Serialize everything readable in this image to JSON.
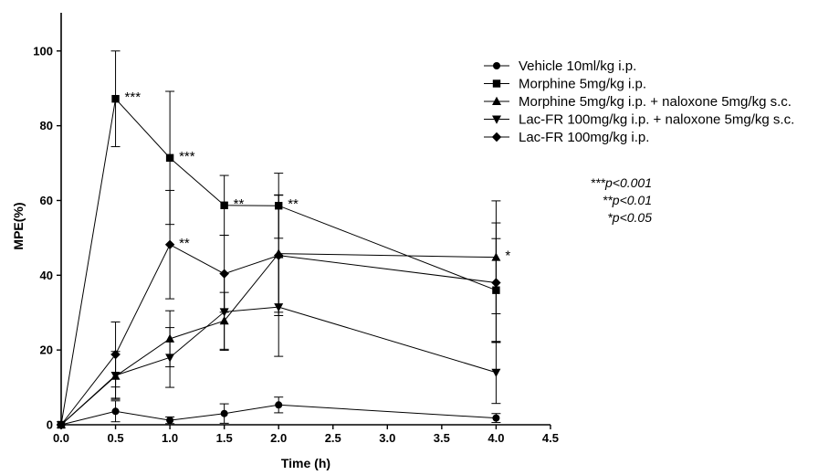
{
  "chart_data": {
    "type": "line",
    "xlabel": "Time (h)",
    "ylabel": "MPE(%)",
    "xlim": [
      0,
      4.5
    ],
    "ylim": [
      0,
      110
    ],
    "x_ticks": [
      "0.0",
      "0.5",
      "1.0",
      "1.5",
      "2.0",
      "2.5",
      "3.0",
      "3.5",
      "4.0",
      "4.5"
    ],
    "y_ticks": [
      "0",
      "20",
      "40",
      "60",
      "80",
      "100"
    ],
    "grid": false,
    "legend_position": "top-right",
    "x": [
      0,
      0.5,
      1.0,
      1.5,
      2.0,
      4.0
    ],
    "series": [
      {
        "name": "Vehicle 10ml/kg i.p.",
        "marker": "circle",
        "values": [
          0,
          3.6,
          1.2,
          3.0,
          5.3,
          1.8
        ],
        "error": [
          0,
          2.8,
          0.9,
          2.6,
          2.1,
          1.2
        ]
      },
      {
        "name": "Morphine 5mg/kg i.p.",
        "marker": "square",
        "values": [
          0,
          87.2,
          71.4,
          58.7,
          58.6,
          36.0
        ],
        "error": [
          0,
          12.8,
          17.8,
          8.0,
          8.7,
          13.8
        ]
      },
      {
        "name": "Morphine 5mg/kg i.p. + naloxone 5mg/kg s.c.",
        "marker": "triangle-up",
        "values": [
          0,
          13.0,
          23.0,
          27.8,
          45.8,
          44.8
        ],
        "error": [
          0,
          5.9,
          7.5,
          7.6,
          15.7,
          15.1
        ]
      },
      {
        "name": "Lac-FR 100mg/kg i.p. + naloxone 5mg/kg s.c.",
        "marker": "triangle-down",
        "values": [
          0,
          13.2,
          18.0,
          30.2,
          31.5,
          14.0
        ],
        "error": [
          0,
          6.4,
          8.0,
          10.3,
          13.2,
          8.3
        ]
      },
      {
        "name": "Lac-FR 100mg/kg i.p.",
        "marker": "diamond",
        "values": [
          0,
          18.8,
          48.2,
          40.4,
          45.3,
          38.0
        ],
        "error": [
          0,
          8.7,
          14.5,
          10.3,
          16.1,
          16.0
        ]
      }
    ],
    "annotations": [
      {
        "x": 0.5,
        "y": 87.2,
        "text": "***"
      },
      {
        "x": 1.0,
        "y": 71.4,
        "text": "***"
      },
      {
        "x": 1.5,
        "y": 58.7,
        "text": "**"
      },
      {
        "x": 2.0,
        "y": 58.6,
        "text": "**"
      },
      {
        "x": 1.0,
        "y": 48.2,
        "text": "**"
      },
      {
        "x": 4.0,
        "y": 44.8,
        "text": "*"
      }
    ],
    "significance_notes": [
      "***p<0.001",
      "**p<0.01",
      "*p<0.05"
    ]
  }
}
